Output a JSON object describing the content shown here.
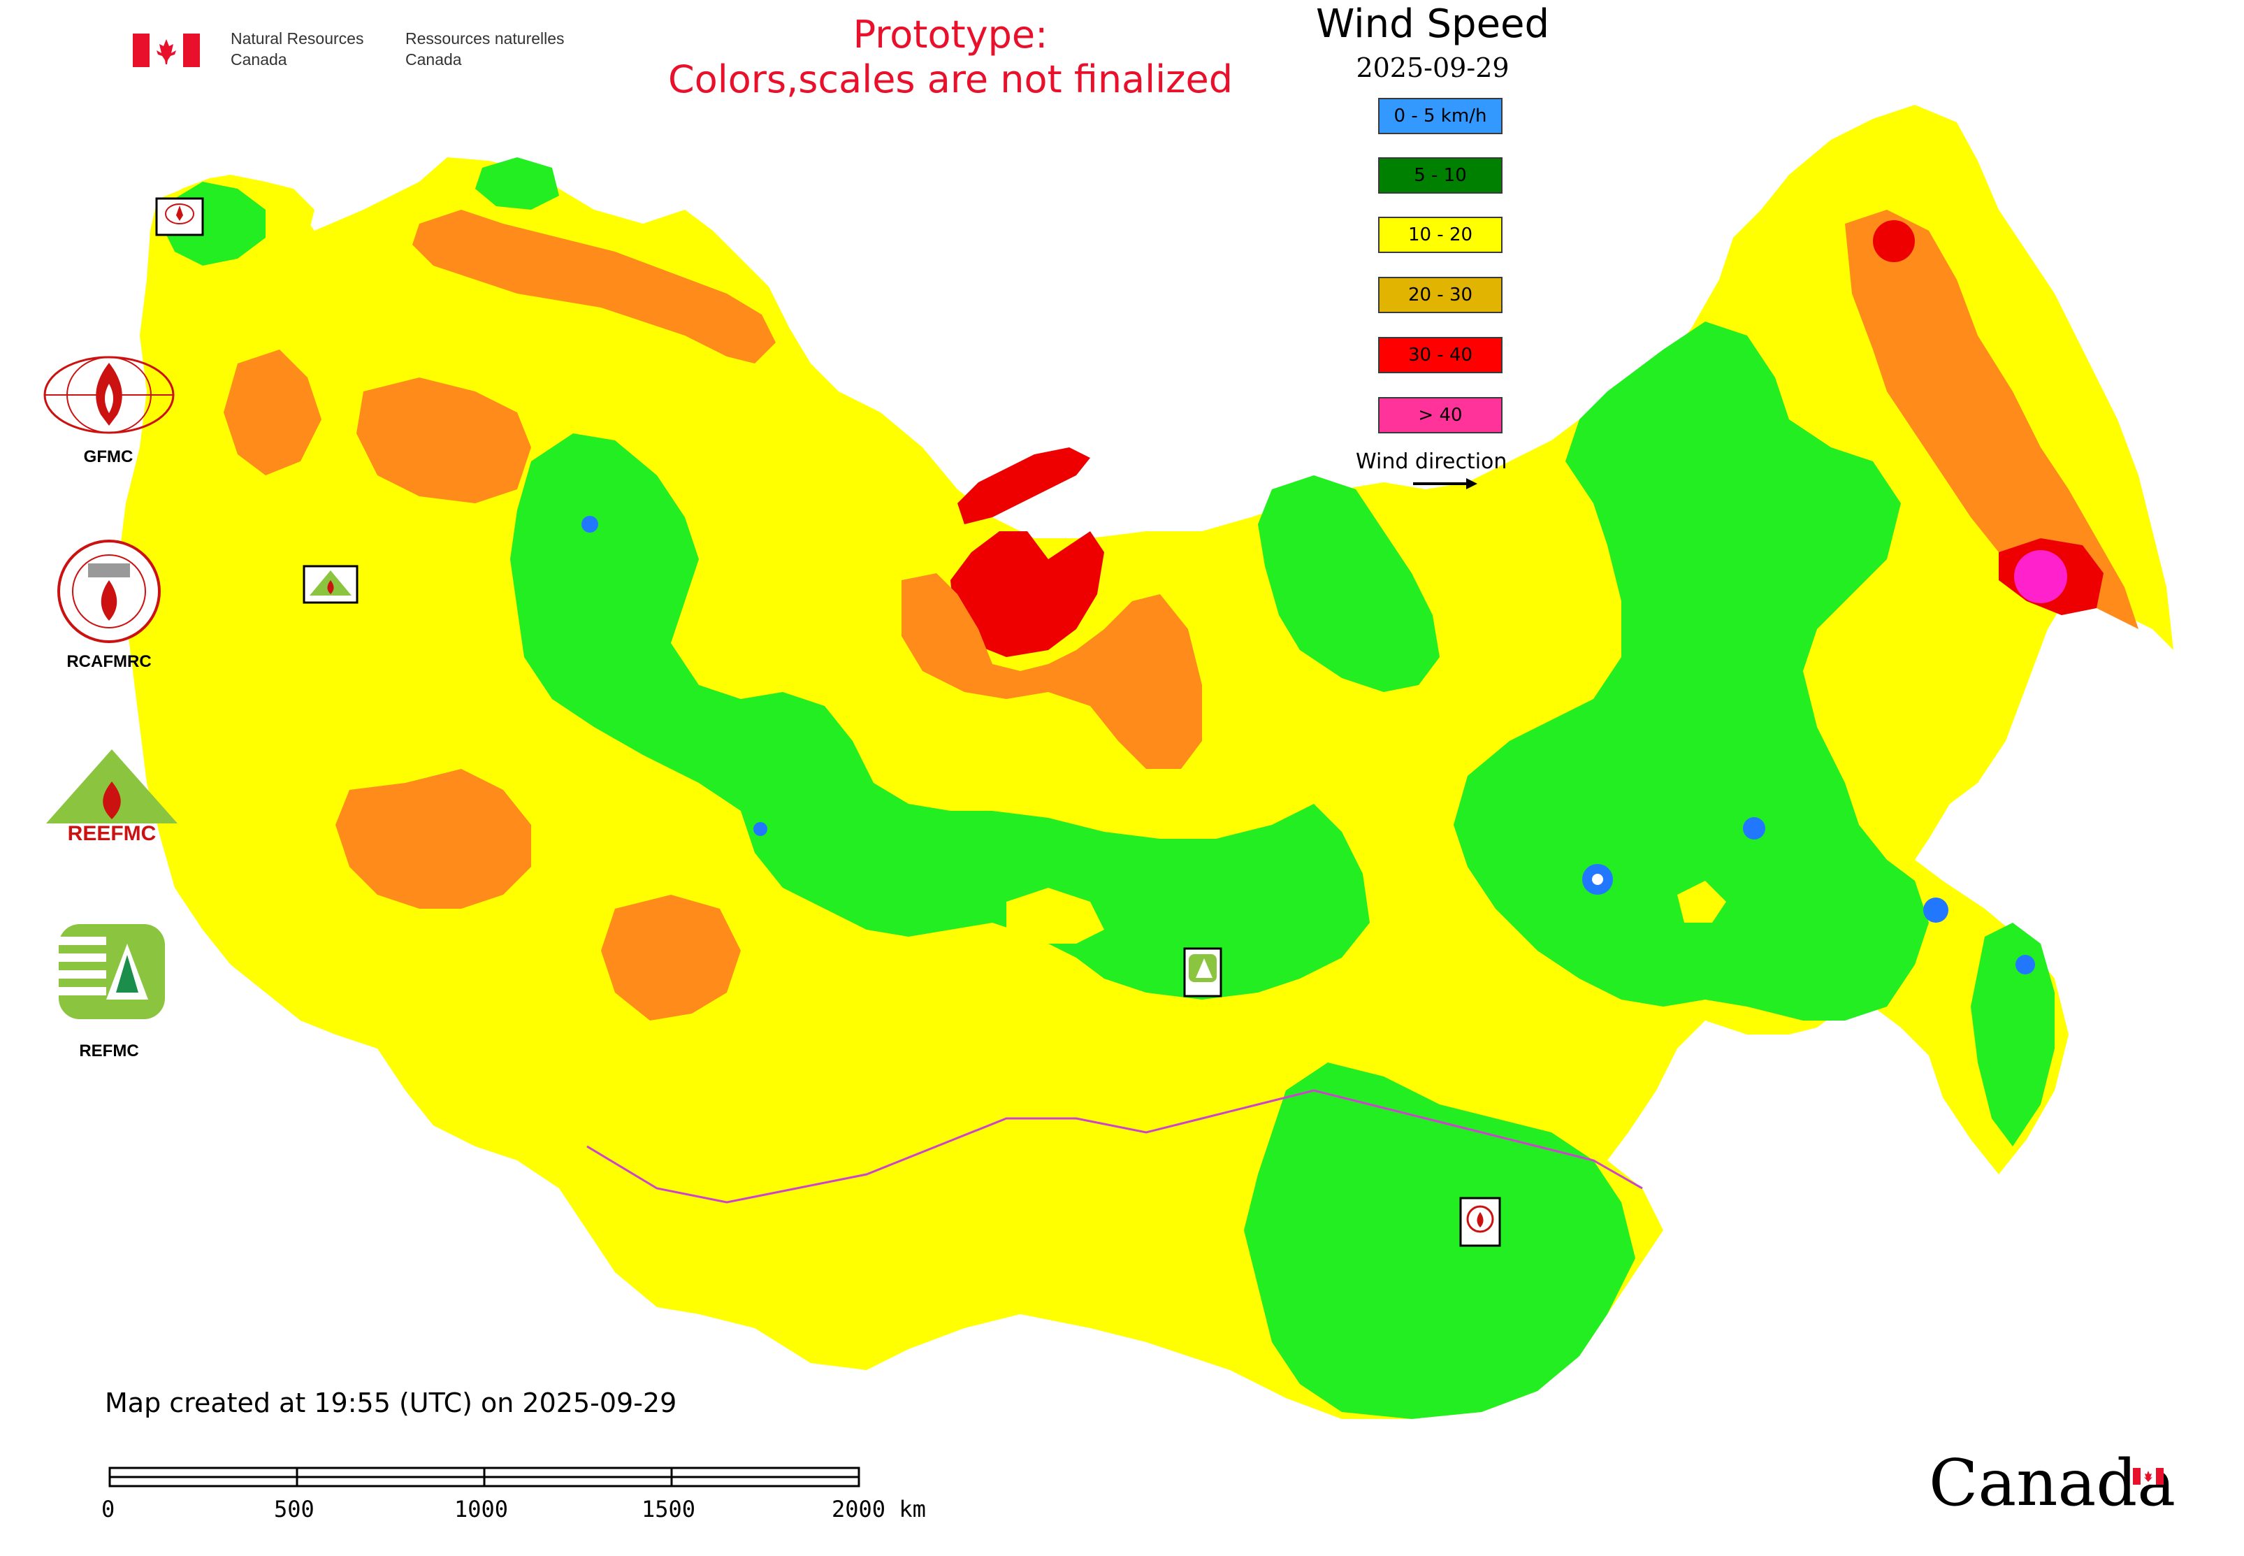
{
  "header": {
    "org_en": "Natural Resources\nCanada",
    "org_fr": "Ressources naturelles\nCanada",
    "prototype_line1": "Prototype:",
    "prototype_line2": "Colors,scales are not finalized"
  },
  "legend": {
    "title": "Wind Speed",
    "date": "2025-09-29",
    "items": [
      {
        "label": "0 - 5 km/h",
        "color": "#3399ff"
      },
      {
        "label": "5 - 10",
        "color": "#008000"
      },
      {
        "label": "10 - 20",
        "color": "#ffff00"
      },
      {
        "label": "20 - 30",
        "color": "#e0b400"
      },
      {
        "label": "30 - 40",
        "color": "#ff0000"
      },
      {
        "label": "> 40",
        "color": "#ff3399"
      }
    ],
    "wind_direction_label": "Wind direction"
  },
  "map_colors": {
    "land_yellow": "#ffff00",
    "green": "#22ee22",
    "orange": "#ff8c1a",
    "red": "#ee0000",
    "blue": "#2277ff",
    "magenta": "#ff22cc",
    "boundary": "#cc44cc"
  },
  "orgs": [
    {
      "name": "GFMC",
      "icon": "gfmc-logo-icon"
    },
    {
      "name": "RCAFMRC",
      "icon": "rcafmrc-logo-icon"
    },
    {
      "name": "REEFMC",
      "icon": "reefmc-logo-icon"
    },
    {
      "name": "REFMC",
      "icon": "refmc-logo-icon"
    }
  ],
  "footer": {
    "created": "Map created at 19:55 (UTC) on 2025-09-29",
    "scale_ticks": [
      "0",
      "500",
      "1000",
      "1500",
      "2000 km"
    ],
    "wordmark": "Canada"
  }
}
